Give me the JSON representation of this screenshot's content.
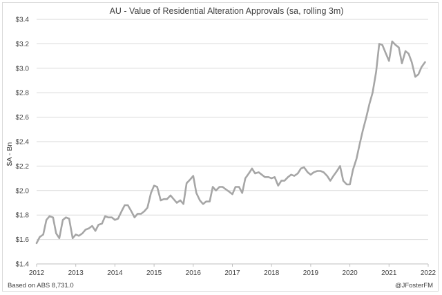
{
  "chart_data": {
    "type": "line",
    "title": "AU - Value of Residential Alteration Approvals (sa, rolling 3m)",
    "ylabel": "$A - Bn",
    "xlabel": "",
    "ylim": [
      1.4,
      3.4
    ],
    "xlim": [
      2012,
      2022
    ],
    "grid": true,
    "yticks": [
      {
        "value": 1.4,
        "label": "$1.4"
      },
      {
        "value": 1.6,
        "label": "$1.6"
      },
      {
        "value": 1.8,
        "label": "$1.8"
      },
      {
        "value": 2.0,
        "label": "$2.0"
      },
      {
        "value": 2.2,
        "label": "$2.2"
      },
      {
        "value": 2.4,
        "label": "$2.4"
      },
      {
        "value": 2.6,
        "label": "$2.6"
      },
      {
        "value": 2.8,
        "label": "$2.8"
      },
      {
        "value": 3.0,
        "label": "$3.0"
      },
      {
        "value": 3.2,
        "label": "$3.2"
      },
      {
        "value": 3.4,
        "label": "$3.4"
      }
    ],
    "xticks": [
      {
        "value": 2012,
        "label": "2012"
      },
      {
        "value": 2013,
        "label": "2013"
      },
      {
        "value": 2014,
        "label": "2014"
      },
      {
        "value": 2015,
        "label": "2015"
      },
      {
        "value": 2016,
        "label": "2016"
      },
      {
        "value": 2017,
        "label": "2017"
      },
      {
        "value": 2018,
        "label": "2018"
      },
      {
        "value": 2019,
        "label": "2019"
      },
      {
        "value": 2020,
        "label": "2020"
      },
      {
        "value": 2021,
        "label": "2021"
      },
      {
        "value": 2022,
        "label": "2022"
      }
    ],
    "series": [
      {
        "color": "#a6a6a6",
        "points": [
          [
            2012.0,
            1.57
          ],
          [
            2012.08,
            1.62
          ],
          [
            2012.17,
            1.64
          ],
          [
            2012.25,
            1.76
          ],
          [
            2012.33,
            1.79
          ],
          [
            2012.42,
            1.78
          ],
          [
            2012.5,
            1.65
          ],
          [
            2012.58,
            1.61
          ],
          [
            2012.67,
            1.76
          ],
          [
            2012.75,
            1.78
          ],
          [
            2012.83,
            1.77
          ],
          [
            2012.92,
            1.61
          ],
          [
            2013.0,
            1.64
          ],
          [
            2013.08,
            1.63
          ],
          [
            2013.17,
            1.65
          ],
          [
            2013.25,
            1.68
          ],
          [
            2013.33,
            1.69
          ],
          [
            2013.42,
            1.71
          ],
          [
            2013.5,
            1.67
          ],
          [
            2013.58,
            1.72
          ],
          [
            2013.67,
            1.73
          ],
          [
            2013.75,
            1.79
          ],
          [
            2013.83,
            1.78
          ],
          [
            2013.92,
            1.78
          ],
          [
            2014.0,
            1.76
          ],
          [
            2014.08,
            1.77
          ],
          [
            2014.17,
            1.83
          ],
          [
            2014.25,
            1.88
          ],
          [
            2014.33,
            1.88
          ],
          [
            2014.42,
            1.83
          ],
          [
            2014.5,
            1.78
          ],
          [
            2014.58,
            1.81
          ],
          [
            2014.67,
            1.81
          ],
          [
            2014.75,
            1.83
          ],
          [
            2014.83,
            1.86
          ],
          [
            2014.92,
            1.98
          ],
          [
            2015.0,
            2.04
          ],
          [
            2015.08,
            2.03
          ],
          [
            2015.17,
            1.92
          ],
          [
            2015.25,
            1.93
          ],
          [
            2015.33,
            1.93
          ],
          [
            2015.42,
            1.96
          ],
          [
            2015.5,
            1.93
          ],
          [
            2015.58,
            1.9
          ],
          [
            2015.67,
            1.92
          ],
          [
            2015.75,
            1.89
          ],
          [
            2015.83,
            2.06
          ],
          [
            2015.92,
            2.09
          ],
          [
            2016.0,
            2.12
          ],
          [
            2016.08,
            1.98
          ],
          [
            2016.17,
            1.92
          ],
          [
            2016.25,
            1.89
          ],
          [
            2016.33,
            1.91
          ],
          [
            2016.42,
            1.91
          ],
          [
            2016.5,
            2.03
          ],
          [
            2016.58,
            2.0
          ],
          [
            2016.67,
            2.03
          ],
          [
            2016.75,
            2.03
          ],
          [
            2016.83,
            2.01
          ],
          [
            2016.92,
            1.99
          ],
          [
            2017.0,
            1.97
          ],
          [
            2017.08,
            2.03
          ],
          [
            2017.17,
            2.03
          ],
          [
            2017.25,
            1.98
          ],
          [
            2017.33,
            2.1
          ],
          [
            2017.42,
            2.14
          ],
          [
            2017.5,
            2.18
          ],
          [
            2017.58,
            2.14
          ],
          [
            2017.67,
            2.15
          ],
          [
            2017.75,
            2.13
          ],
          [
            2017.83,
            2.11
          ],
          [
            2017.92,
            2.11
          ],
          [
            2018.0,
            2.1
          ],
          [
            2018.08,
            2.11
          ],
          [
            2018.17,
            2.04
          ],
          [
            2018.25,
            2.08
          ],
          [
            2018.33,
            2.08
          ],
          [
            2018.42,
            2.11
          ],
          [
            2018.5,
            2.13
          ],
          [
            2018.58,
            2.12
          ],
          [
            2018.67,
            2.14
          ],
          [
            2018.75,
            2.18
          ],
          [
            2018.83,
            2.19
          ],
          [
            2018.92,
            2.15
          ],
          [
            2019.0,
            2.13
          ],
          [
            2019.08,
            2.15
          ],
          [
            2019.17,
            2.16
          ],
          [
            2019.25,
            2.16
          ],
          [
            2019.33,
            2.15
          ],
          [
            2019.42,
            2.12
          ],
          [
            2019.5,
            2.08
          ],
          [
            2019.58,
            2.12
          ],
          [
            2019.67,
            2.16
          ],
          [
            2019.75,
            2.2
          ],
          [
            2019.83,
            2.08
          ],
          [
            2019.92,
            2.05
          ],
          [
            2020.0,
            2.05
          ],
          [
            2020.08,
            2.17
          ],
          [
            2020.17,
            2.26
          ],
          [
            2020.25,
            2.38
          ],
          [
            2020.33,
            2.49
          ],
          [
            2020.42,
            2.6
          ],
          [
            2020.5,
            2.71
          ],
          [
            2020.58,
            2.8
          ],
          [
            2020.67,
            2.97
          ],
          [
            2020.75,
            3.2
          ],
          [
            2020.83,
            3.19
          ],
          [
            2020.92,
            3.12
          ],
          [
            2021.0,
            3.06
          ],
          [
            2021.08,
            3.22
          ],
          [
            2021.17,
            3.19
          ],
          [
            2021.25,
            3.17
          ],
          [
            2021.33,
            3.04
          ],
          [
            2021.42,
            3.14
          ],
          [
            2021.5,
            3.12
          ],
          [
            2021.58,
            3.05
          ],
          [
            2021.67,
            2.93
          ],
          [
            2021.75,
            2.95
          ],
          [
            2021.83,
            3.01
          ],
          [
            2021.92,
            3.05
          ]
        ]
      }
    ]
  },
  "footer": {
    "source": "Based on ABS 8,731.0",
    "handle": "@JFosterFM"
  }
}
